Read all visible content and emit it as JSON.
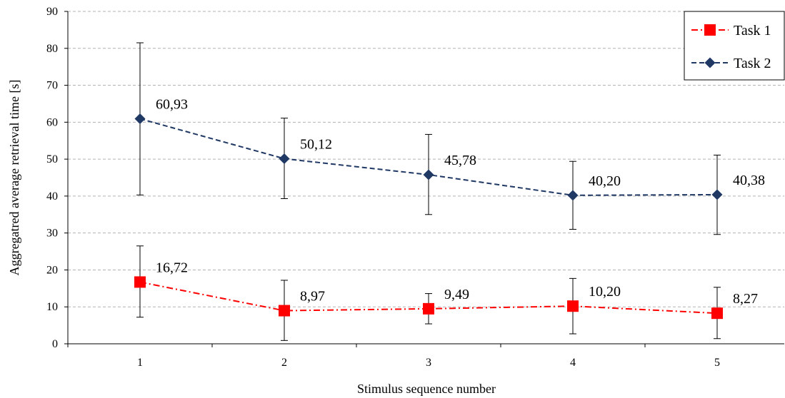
{
  "chart_data": {
    "type": "line",
    "xlabel": "Stimulus sequence number",
    "ylabel": "Aggregatred average retrieval time [s]",
    "ylim": [
      0,
      90
    ],
    "y_ticks": [
      0,
      10,
      20,
      30,
      40,
      50,
      60,
      70,
      80,
      90
    ],
    "categories": [
      "1",
      "2",
      "3",
      "4",
      "5"
    ],
    "grid": "horizontal dashed",
    "legend_position": "top-right",
    "series": [
      {
        "name": "Task 1",
        "color": "#ff0000",
        "marker": "square",
        "line_style": "dash-dot",
        "values": [
          16.72,
          8.97,
          9.49,
          10.2,
          8.27
        ],
        "labels": [
          "16,72",
          "8,97",
          "9,49",
          "10,20",
          "8,27"
        ],
        "error_low": [
          7.2,
          0.9,
          5.4,
          2.7,
          1.4
        ],
        "error_high": [
          26.5,
          17.2,
          13.6,
          17.7,
          15.3
        ]
      },
      {
        "name": "Task 2",
        "color": "#1f3864",
        "marker": "diamond",
        "line_style": "dashed",
        "values": [
          60.93,
          50.12,
          45.78,
          40.2,
          40.38
        ],
        "labels": [
          "60,93",
          "50,12",
          "45,78",
          "40,20",
          "40,38"
        ],
        "error_low": [
          40.3,
          39.3,
          35.0,
          31.0,
          29.6
        ],
        "error_high": [
          81.5,
          61.1,
          56.7,
          49.4,
          51.1
        ]
      }
    ]
  }
}
